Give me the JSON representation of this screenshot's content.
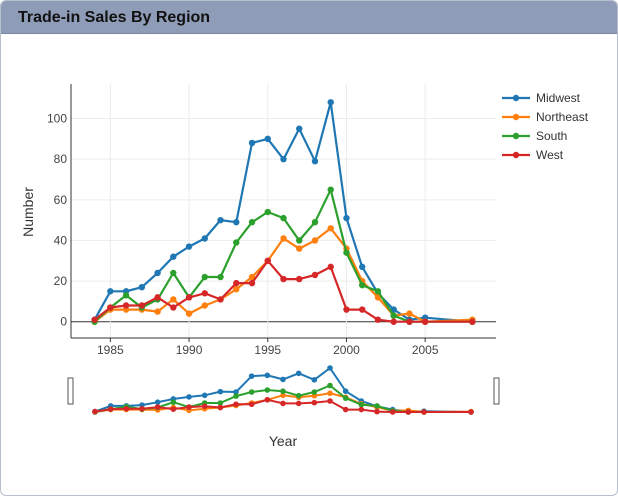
{
  "panel": {
    "title": "Trade-in Sales By Region"
  },
  "chart_data": {
    "type": "line",
    "title": "",
    "xlabel": "Year",
    "ylabel": "Number",
    "xlim": [
      1982.5,
      2009.5
    ],
    "ylim": [
      -8,
      117
    ],
    "xticks": [
      1985,
      1990,
      1995,
      2000,
      2005
    ],
    "yticks": [
      0,
      20,
      40,
      60,
      80,
      100
    ],
    "grid": true,
    "legend_position": "top-right",
    "range_selector": true,
    "x": [
      1984,
      1985,
      1986,
      1987,
      1988,
      1989,
      1990,
      1991,
      1992,
      1993,
      1994,
      1995,
      1996,
      1997,
      1998,
      1999,
      2000,
      2001,
      2002,
      2003,
      2004,
      2005,
      2008
    ],
    "series": [
      {
        "name": "Midwest",
        "color": "#1f77b4",
        "values": [
          1,
          15,
          15,
          17,
          24,
          32,
          37,
          41,
          50,
          49,
          88,
          90,
          80,
          95,
          79,
          108,
          51,
          27,
          14,
          6,
          1,
          2,
          0
        ]
      },
      {
        "name": "Northeast",
        "color": "#ff7f0e",
        "values": [
          0,
          6,
          6,
          6,
          5,
          11,
          4,
          8,
          11,
          16,
          22,
          30,
          41,
          36,
          40,
          46,
          36,
          20,
          12,
          3,
          4,
          0,
          1
        ]
      },
      {
        "name": "South",
        "color": "#2ca02c",
        "values": [
          0,
          7,
          13,
          7,
          11,
          24,
          12,
          22,
          22,
          39,
          49,
          54,
          51,
          40,
          49,
          65,
          34,
          18,
          15,
          3,
          0,
          0,
          0
        ]
      },
      {
        "name": "West",
        "color": "#d62728",
        "values": [
          1,
          7,
          8,
          8,
          12,
          7,
          12,
          14,
          11,
          19,
          19,
          30,
          21,
          21,
          23,
          27,
          6,
          6,
          1,
          0,
          0,
          0,
          0
        ]
      }
    ]
  }
}
